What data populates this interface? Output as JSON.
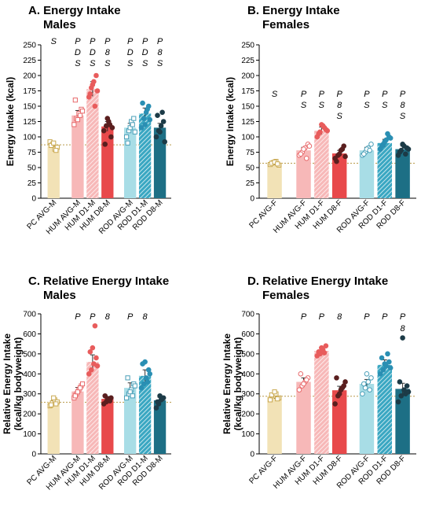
{
  "colors": {
    "pc": "#f2e2b6",
    "pc_edge": "#c9a84f",
    "hum_avg": "#f7b8b8",
    "hum_d1": "#f49a9a",
    "hum_d8": "#e8494b",
    "rod_avg": "#a8dde6",
    "rod_d1": "#3aa7c2",
    "rod_d8": "#1d6f85",
    "hum_avg_dot": "#e8696b",
    "hum_d1_dot": "#e85c5c",
    "hum_d8_dot": "#5a1f1f",
    "rod_avg_dot": "#4a9fb8",
    "rod_d1_dot": "#2a8fb3",
    "rod_d8_dot": "#1c3b47"
  },
  "chart_data": [
    {
      "panel": "A.",
      "type": "bar",
      "title": "Energy Intake",
      "subtitle": "Males",
      "ylabel": "Energy Intake (kcal)",
      "ylim": [
        0,
        250
      ],
      "yticks": [
        "0",
        "25",
        "50",
        "75",
        "100",
        "125",
        "150",
        "175",
        "200",
        "225",
        "250"
      ],
      "categories": [
        "PC AVG-M",
        "HUM AVG-M",
        "HUM D1-M",
        "HUM D8-M",
        "ROD AVG-M",
        "ROD D1-M",
        "ROD D8-M"
      ],
      "values": [
        85,
        135,
        178,
        117,
        115,
        138,
        115
      ],
      "errors": [
        5,
        8,
        12,
        8,
        7,
        9,
        7
      ],
      "points": [
        [
          92,
          88,
          80,
          83,
          86,
          90,
          78
        ],
        [
          120,
          130,
          138,
          145,
          160,
          128,
          135,
          142
        ],
        [
          165,
          180,
          190,
          200,
          170,
          185,
          150,
          175
        ],
        [
          110,
          118,
          125,
          100,
          88,
          130,
          120,
          115
        ],
        [
          100,
          110,
          125,
          130,
          90,
          115,
          120,
          108
        ],
        [
          115,
          130,
          140,
          150,
          155,
          120,
          145,
          128
        ],
        [
          100,
          110,
          118,
          125,
          135,
          108,
          140,
          92
        ]
      ],
      "reference": 87,
      "sig": [
        [
          "S"
        ],
        [
          "P",
          "D",
          "S"
        ],
        [
          "P",
          "D",
          "S"
        ],
        [
          "P",
          "8",
          "S"
        ],
        [
          "P",
          "D",
          "S"
        ],
        [
          "P",
          "D",
          "S"
        ],
        [
          "P",
          "8",
          "S"
        ]
      ]
    },
    {
      "panel": "B.",
      "type": "bar",
      "title": "Energy Intake",
      "subtitle": "Females",
      "ylabel": "Energy Intake (kcal)",
      "ylim": [
        0,
        250
      ],
      "yticks": [
        "0",
        "25",
        "50",
        "75",
        "100",
        "125",
        "150",
        "175",
        "200",
        "225",
        "250"
      ],
      "categories": [
        "PC AVG-F",
        "HUM AVG-F",
        "HUM D1-F",
        "HUM D8-F",
        "ROD AVG-F",
        "ROD D1-F",
        "ROD D8-F"
      ],
      "values": [
        57,
        78,
        110,
        73,
        78,
        90,
        80
      ],
      "errors": [
        3,
        5,
        6,
        5,
        5,
        6,
        5
      ],
      "points": [
        [
          55,
          58,
          60,
          54,
          57,
          59,
          56
        ],
        [
          70,
          75,
          82,
          88,
          72,
          80,
          65,
          85
        ],
        [
          100,
          108,
          118,
          112,
          105,
          120,
          115,
          110
        ],
        [
          65,
          70,
          78,
          85,
          60,
          72,
          80,
          68
        ],
        [
          70,
          75,
          82,
          88,
          72,
          80,
          78
        ],
        [
          80,
          88,
          95,
          100,
          85,
          92,
          105,
          98
        ],
        [
          70,
          78,
          85,
          82,
          75,
          88,
          72,
          80
        ]
      ],
      "reference": 57,
      "sig": [
        [
          "S"
        ],
        [
          "P",
          "S"
        ],
        [
          "P",
          "S"
        ],
        [
          "P",
          "8",
          "S"
        ],
        [
          "P",
          "S"
        ],
        [
          "P",
          "S"
        ],
        [
          "P",
          "8",
          "S"
        ]
      ]
    },
    {
      "panel": "C.",
      "type": "bar",
      "title": "Relative Energy Intake",
      "subtitle": "Males",
      "ylabel": "Relative Energy Intake",
      "ylabel2": "(kcal/kg bodyweight)",
      "ylim": [
        0,
        700
      ],
      "yticks": [
        "0",
        "100",
        "200",
        "300",
        "400",
        "500",
        "600",
        "700"
      ],
      "categories": [
        "PC AVG-M",
        "HUM AVG-M",
        "HUM D1-M",
        "HUM D8-M",
        "ROD AVG-M",
        "ROD D1-M",
        "ROD D8-M"
      ],
      "values": [
        258,
        312,
        460,
        275,
        330,
        390,
        268
      ],
      "errors": [
        12,
        20,
        35,
        12,
        25,
        30,
        15
      ],
      "points": [
        [
          240,
          255,
          270,
          260,
          245,
          280,
          250
        ],
        [
          280,
          300,
          320,
          340,
          290,
          310,
          330,
          350
        ],
        [
          400,
          420,
          450,
          480,
          510,
          530,
          640,
          440
        ],
        [
          250,
          260,
          270,
          280,
          290,
          275,
          265
        ],
        [
          280,
          300,
          320,
          350,
          380,
          310,
          290,
          340
        ],
        [
          330,
          350,
          380,
          420,
          450,
          460,
          360,
          400
        ],
        [
          230,
          250,
          270,
          280,
          260,
          290,
          275
        ]
      ],
      "reference": 258,
      "sig": [
        [],
        [
          "P"
        ],
        [
          "P"
        ],
        [
          "8"
        ],
        [
          "P"
        ],
        [
          "8"
        ],
        []
      ]
    },
    {
      "panel": "D.",
      "type": "bar",
      "title": "Relative Energy Intake",
      "subtitle": "Females",
      "ylabel": "Relative Energy Intake",
      "ylabel2": "(kcal/kg bodyweight)",
      "ylim": [
        0,
        700
      ],
      "yticks": [
        "0",
        "100",
        "200",
        "300",
        "400",
        "500",
        "600",
        "700"
      ],
      "categories": [
        "PC AVG-F",
        "HUM AVG-F",
        "HUM D1-F",
        "HUM D8-F",
        "ROD AVG-F",
        "ROD D1-F",
        "ROD D8-F"
      ],
      "values": [
        288,
        360,
        515,
        318,
        350,
        445,
        325
      ],
      "errors": [
        12,
        20,
        18,
        20,
        22,
        25,
        28
      ],
      "points": [
        [
          270,
          290,
          300,
          280,
          295,
          310,
          275
        ],
        [
          320,
          340,
          360,
          380,
          400,
          350,
          370
        ],
        [
          490,
          500,
          520,
          540,
          510,
          530,
          505
        ],
        [
          250,
          290,
          320,
          340,
          380,
          300,
          330,
          360
        ],
        [
          300,
          330,
          360,
          380,
          350,
          400,
          320
        ],
        [
          400,
          420,
          440,
          460,
          480,
          450,
          500,
          430
        ],
        [
          260,
          290,
          320,
          340,
          360,
          580,
          300,
          310
        ]
      ],
      "reference": 288,
      "sig": [
        [],
        [
          "P"
        ],
        [
          "P"
        ],
        [
          "8"
        ],
        [
          "P"
        ],
        [
          "P"
        ],
        [
          "P",
          "8"
        ]
      ]
    }
  ]
}
